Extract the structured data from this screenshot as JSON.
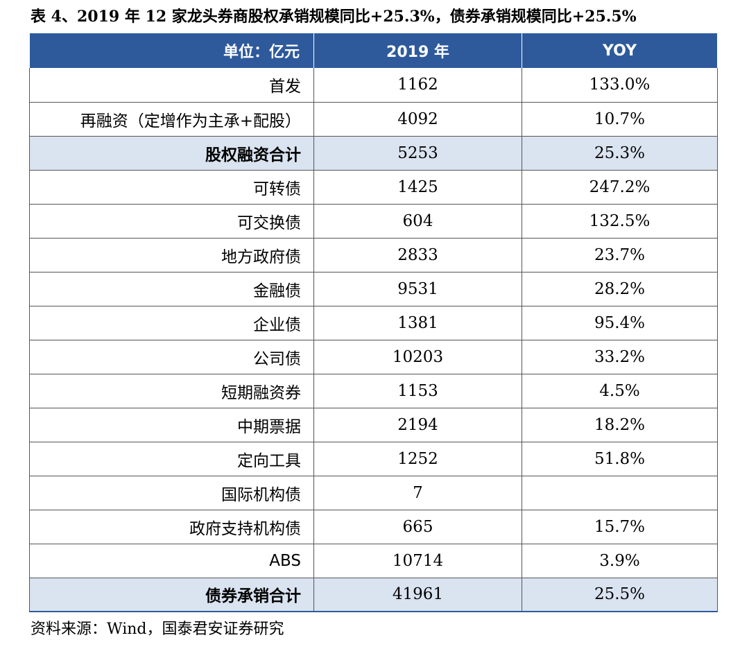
{
  "title": "表 4、2019 年 12 家龙头券商股权承销规模同比+25.3%，债券承销规模同比+25.5%",
  "header": {
    "unit": "单位：亿元",
    "year": "2019 年",
    "yoy": "YOY"
  },
  "rows": [
    {
      "name": "首发",
      "value": "1162",
      "yoy": "133.0%",
      "subtotal": false
    },
    {
      "name": "再融资（定增作为主承+配股）",
      "value": "4092",
      "yoy": "10.7%",
      "subtotal": false
    },
    {
      "name": "股权融资合计",
      "value": "5253",
      "yoy": "25.3%",
      "subtotal": true
    },
    {
      "name": "可转债",
      "value": "1425",
      "yoy": "247.2%",
      "subtotal": false
    },
    {
      "name": "可交换债",
      "value": "604",
      "yoy": "132.5%",
      "subtotal": false
    },
    {
      "name": "地方政府债",
      "value": "2833",
      "yoy": "23.7%",
      "subtotal": false
    },
    {
      "name": "金融债",
      "value": "9531",
      "yoy": "28.2%",
      "subtotal": false
    },
    {
      "name": "企业债",
      "value": "1381",
      "yoy": "95.4%",
      "subtotal": false
    },
    {
      "name": "公司债",
      "value": "10203",
      "yoy": "33.2%",
      "subtotal": false
    },
    {
      "name": "短期融资券",
      "value": "1153",
      "yoy": "4.5%",
      "subtotal": false
    },
    {
      "name": "中期票据",
      "value": "2194",
      "yoy": "18.2%",
      "subtotal": false
    },
    {
      "name": "定向工具",
      "value": "1252",
      "yoy": "51.8%",
      "subtotal": false
    },
    {
      "name": "国际机构债",
      "value": "7",
      "yoy": "",
      "subtotal": false
    },
    {
      "name": "政府支持机构债",
      "value": "665",
      "yoy": "15.7%",
      "subtotal": false
    },
    {
      "name": "ABS",
      "value": "10714",
      "yoy": "3.9%",
      "subtotal": false
    },
    {
      "name": "债券承销合计",
      "value": "41961",
      "yoy": "25.5%",
      "subtotal": true
    }
  ],
  "source": "资料来源：Wind，国泰君安证券研究",
  "colors": {
    "header_bg": "#2e5a9c",
    "subtotal_bg": "#dae3f0"
  }
}
